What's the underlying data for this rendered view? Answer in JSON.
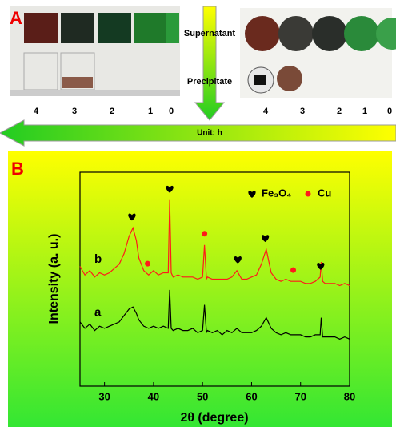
{
  "panel_a": {
    "label": "A",
    "supernatant": "Supernatant",
    "precipitate": "Precipitate",
    "times_left": [
      "4",
      "3",
      "2",
      "1",
      "0"
    ],
    "times_right": [
      "4",
      "3",
      "2",
      "1",
      "0"
    ],
    "arrow_label": "Unit: h"
  },
  "chart_data": {
    "type": "line",
    "panel_label": "B",
    "x_label": "2θ (degree)",
    "y_label": "Intensity (a. u.)",
    "xlim": [
      25,
      80
    ],
    "xticks": [
      30,
      40,
      50,
      60,
      70,
      80
    ],
    "ylim": [
      0,
      100
    ],
    "x": [
      25,
      26,
      27,
      28,
      29,
      30,
      31,
      32,
      33,
      34,
      35,
      35.8,
      36.5,
      37,
      38,
      39,
      40,
      41,
      42,
      43,
      43.3,
      43.6,
      44,
      45,
      46,
      47,
      48,
      49,
      50,
      50.4,
      50.8,
      51,
      52,
      53,
      54,
      55,
      56,
      57,
      58,
      59,
      60,
      61,
      62,
      63,
      64,
      65,
      66,
      67,
      68,
      69,
      70,
      71,
      72,
      73,
      74,
      74.2,
      74.5,
      75,
      76,
      77,
      78,
      79,
      80
    ],
    "series": [
      {
        "name": "b",
        "color": "#ff1a1a",
        "values": [
          56,
          52,
          54,
          51,
          53,
          52,
          53,
          55,
          57,
          62,
          70,
          74,
          68,
          60,
          54,
          52,
          54,
          52,
          53,
          53,
          87,
          53,
          51,
          52,
          51,
          51,
          51,
          50,
          51,
          66,
          50,
          51,
          50,
          50,
          50,
          50,
          51,
          54,
          50,
          50,
          51,
          52,
          57,
          64,
          53,
          50,
          49,
          50,
          49,
          49,
          49,
          48,
          48,
          49,
          51,
          58,
          49,
          48,
          48,
          48,
          47,
          48,
          47
        ]
      },
      {
        "name": "a",
        "color": "#000000",
        "values": [
          30,
          27,
          29,
          26,
          28,
          27,
          28,
          29,
          30,
          33,
          36,
          37,
          34,
          31,
          28,
          27,
          28,
          27,
          28,
          27,
          45,
          27,
          26,
          27,
          26,
          26,
          27,
          25,
          26,
          38,
          25,
          26,
          25,
          26,
          24,
          26,
          25,
          27,
          25,
          25,
          25,
          26,
          28,
          32,
          27,
          25,
          24,
          25,
          24,
          24,
          24,
          23,
          23,
          24,
          24,
          32,
          23,
          23,
          23,
          23,
          22,
          23,
          22
        ]
      }
    ],
    "legend": [
      {
        "label": "Fe₃O₄",
        "marker": "heart",
        "color": "#000000",
        "peaks": [
          35.6,
          43.3,
          57.2,
          62.8,
          74.1
        ]
      },
      {
        "label": "Cu",
        "marker": "dot",
        "color": "#ff1a1a",
        "peaks": [
          38.8,
          50.4,
          68.5
        ]
      }
    ]
  }
}
